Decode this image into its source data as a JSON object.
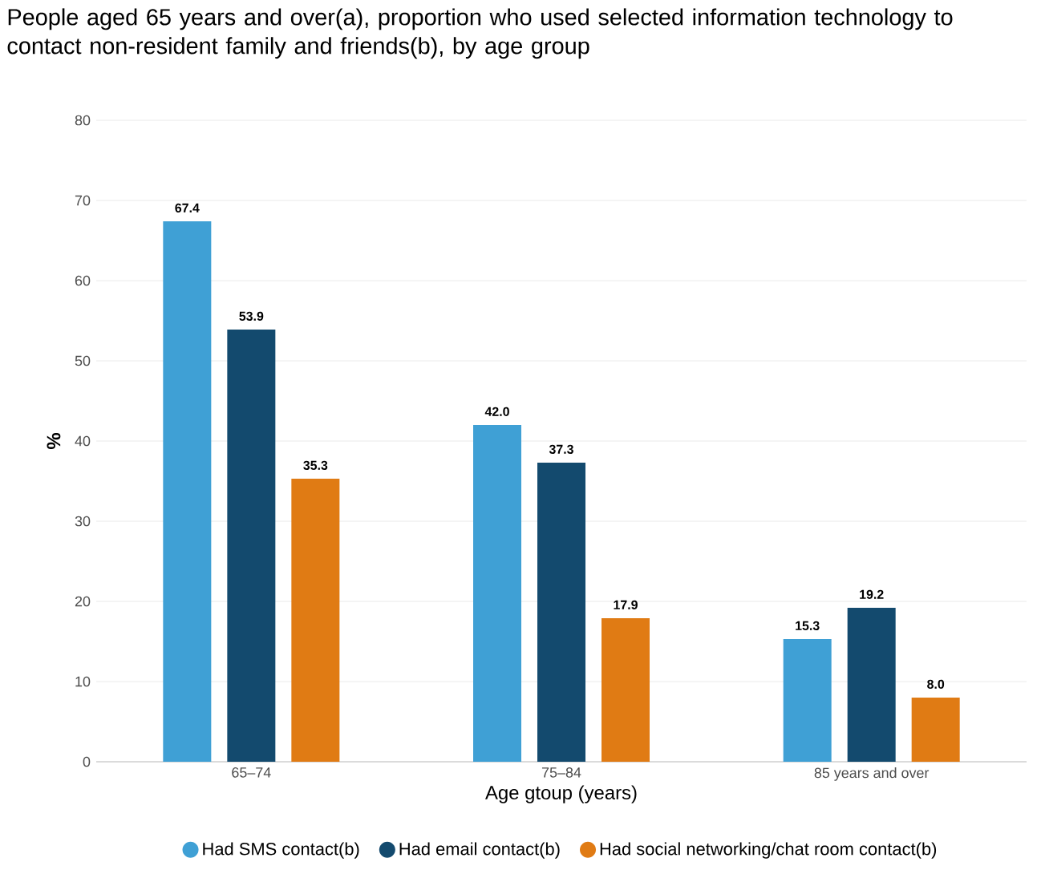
{
  "chart_data": {
    "type": "bar",
    "title": "People aged 65 years and over(a), proportion who used selected information technology to contact non-resident family and friends(b), by age group",
    "xlabel": "Age gtoup (years)",
    "ylabel": "%",
    "categories": [
      "65–74",
      "75–84",
      "85 years and over"
    ],
    "series": [
      {
        "name": "Had SMS contact(b)",
        "color": "#3fa0d5",
        "values": [
          67.4,
          42.0,
          15.3
        ],
        "value_labels": [
          "67.4",
          "42.0",
          "15.3"
        ]
      },
      {
        "name": "Had email contact(b)",
        "color": "#134a6e",
        "values": [
          53.9,
          37.3,
          19.2
        ],
        "value_labels": [
          "53.9",
          "37.3",
          "19.2"
        ]
      },
      {
        "name": "Had social networking/chat room contact(b)",
        "color": "#e07b14",
        "values": [
          35.3,
          17.9,
          8.0
        ],
        "value_labels": [
          "35.3",
          "17.9",
          "8.0"
        ]
      }
    ],
    "ylim": [
      0,
      80
    ],
    "yticks": [
      0,
      10,
      20,
      30,
      40,
      50,
      60,
      70,
      80
    ],
    "grid": "y",
    "legend": "bottom",
    "marker": "circle"
  }
}
